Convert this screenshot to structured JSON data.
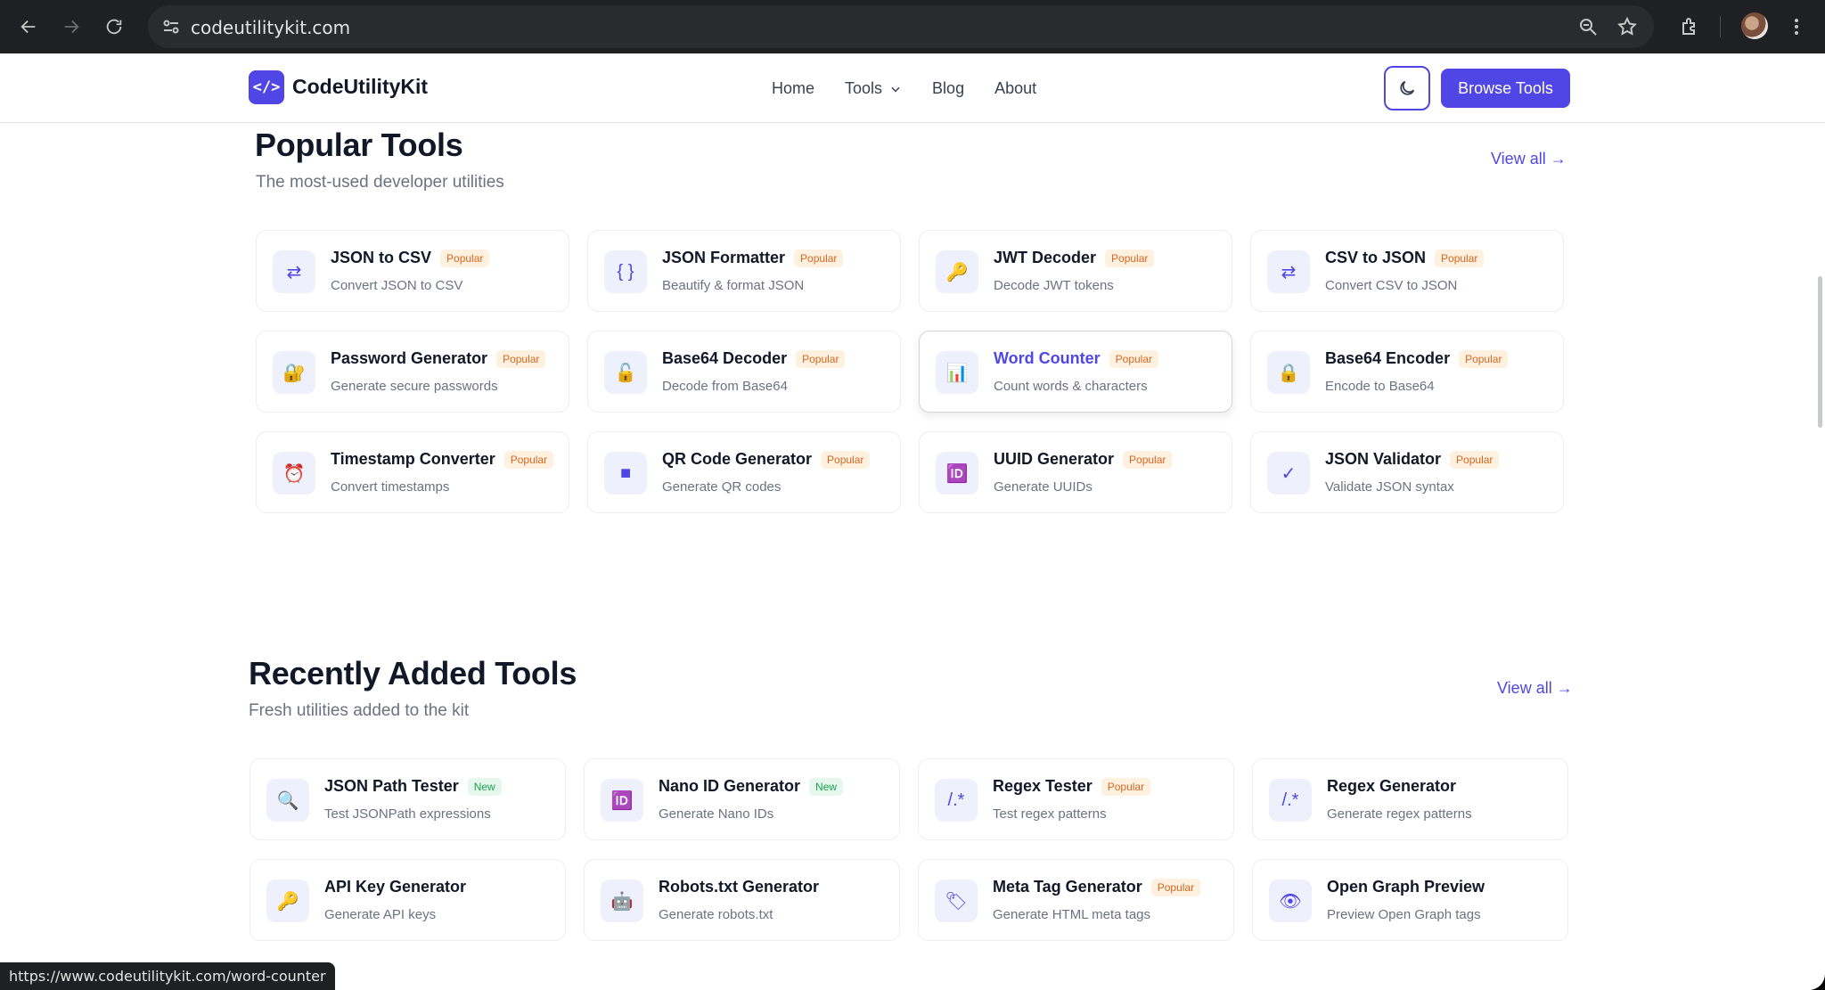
{
  "browser": {
    "url": "codeutilitykit.com",
    "status_url": "https://www.codeutilitykit.com/word-counter"
  },
  "header": {
    "logo_glyph": "</>",
    "brand": "CodeUtilityKit",
    "nav": [
      "Home",
      "Tools",
      "Blog",
      "About"
    ],
    "browse_label": "Browse Tools"
  },
  "popular": {
    "title": "Popular Tools",
    "subtitle": "The most-used developer utilities",
    "view_all": "View all →",
    "tools": [
      {
        "name": "JSON to CSV",
        "badge": "Popular",
        "desc": "Convert JSON to CSV",
        "icon": "⇄",
        "icon_name": "swap-arrows-icon"
      },
      {
        "name": "JSON Formatter",
        "badge": "Popular",
        "desc": "Beautify & format JSON",
        "icon": "{ }",
        "icon_name": "curly-braces-icon"
      },
      {
        "name": "JWT Decoder",
        "badge": "Popular",
        "desc": "Decode JWT tokens",
        "icon": "🔑",
        "icon_name": "key-icon"
      },
      {
        "name": "CSV to JSON",
        "badge": "Popular",
        "desc": "Convert CSV to JSON",
        "icon": "⇄",
        "icon_name": "swap-arrows-icon"
      },
      {
        "name": "Password Generator",
        "badge": "Popular",
        "desc": "Generate secure passwords",
        "icon": "🔐",
        "icon_name": "lock-key-icon"
      },
      {
        "name": "Base64 Decoder",
        "badge": "Popular",
        "desc": "Decode from Base64",
        "icon": "🔓",
        "icon_name": "unlock-icon"
      },
      {
        "name": "Word Counter",
        "badge": "Popular",
        "desc": "Count words & characters",
        "icon": "📊",
        "icon_name": "bar-chart-icon"
      },
      {
        "name": "Base64 Encoder",
        "badge": "Popular",
        "desc": "Encode to Base64",
        "icon": "🔒",
        "icon_name": "lock-icon"
      },
      {
        "name": "Timestamp Converter",
        "badge": "Popular",
        "desc": "Convert timestamps",
        "icon": "⏰",
        "icon_name": "alarm-clock-icon"
      },
      {
        "name": "QR Code Generator",
        "badge": "Popular",
        "desc": "Generate QR codes",
        "icon": "■",
        "icon_name": "qr-square-icon"
      },
      {
        "name": "UUID Generator",
        "badge": "Popular",
        "desc": "Generate UUIDs",
        "icon": "🆔",
        "icon_name": "id-icon"
      },
      {
        "name": "JSON Validator",
        "badge": "Popular",
        "desc": "Validate JSON syntax",
        "icon": "✓",
        "icon_name": "check-icon"
      }
    ]
  },
  "recent": {
    "title": "Recently Added Tools",
    "subtitle": "Fresh utilities added to the kit",
    "view_all": "View all →",
    "tools": [
      {
        "name": "JSON Path Tester",
        "badge": "New",
        "desc": "Test JSONPath expressions",
        "icon": "🔍",
        "icon_name": "magnifier-icon"
      },
      {
        "name": "Nano ID Generator",
        "badge": "New",
        "desc": "Generate Nano IDs",
        "icon": "🆔",
        "icon_name": "id-icon"
      },
      {
        "name": "Regex Tester",
        "badge": "Popular",
        "desc": "Test regex patterns",
        "icon": "/.*",
        "icon_name": "regex-icon"
      },
      {
        "name": "Regex Generator",
        "badge": "",
        "desc": "Generate regex patterns",
        "icon": "/.*",
        "icon_name": "regex-icon"
      },
      {
        "name": "API Key Generator",
        "badge": "",
        "desc": "Generate API keys",
        "icon": "🔑",
        "icon_name": "key-icon"
      },
      {
        "name": "Robots.txt Generator",
        "badge": "",
        "desc": "Generate robots.txt",
        "icon": "🤖",
        "icon_name": "robot-icon"
      },
      {
        "name": "Meta Tag Generator",
        "badge": "Popular",
        "desc": "Generate HTML meta tags",
        "icon": "🏷",
        "icon_name": "tag-icon"
      },
      {
        "name": "Open Graph Preview",
        "badge": "",
        "desc": "Preview Open Graph tags",
        "icon": "👁",
        "icon_name": "eye-icon"
      }
    ]
  }
}
